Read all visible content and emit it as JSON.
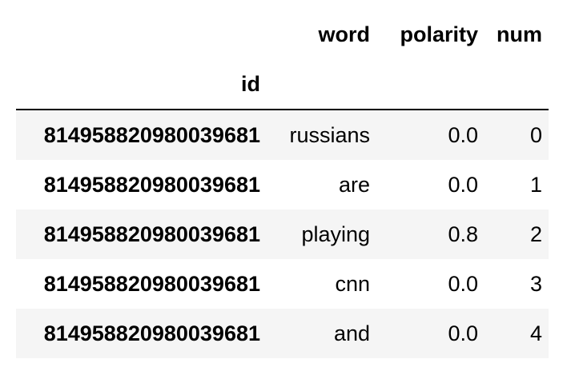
{
  "table": {
    "columns": [
      "word",
      "polarity",
      "num"
    ],
    "index_name": "id",
    "rows": [
      {
        "id": "814958820980039681",
        "word": "russians",
        "polarity": "0.0",
        "num": "0"
      },
      {
        "id": "814958820980039681",
        "word": "are",
        "polarity": "0.0",
        "num": "1"
      },
      {
        "id": "814958820980039681",
        "word": "playing",
        "polarity": "0.8",
        "num": "2"
      },
      {
        "id": "814958820980039681",
        "word": "cnn",
        "polarity": "0.0",
        "num": "3"
      },
      {
        "id": "814958820980039681",
        "word": "and",
        "polarity": "0.0",
        "num": "4"
      }
    ]
  }
}
